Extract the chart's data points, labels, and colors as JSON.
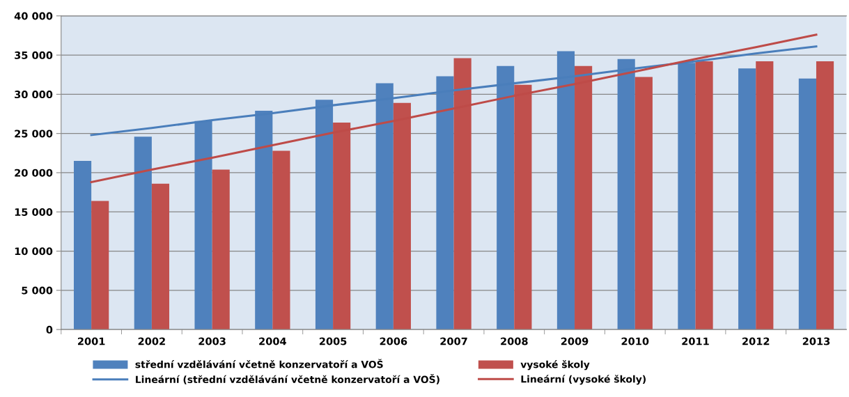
{
  "chart_data": {
    "type": "bar",
    "categories": [
      "2001",
      "2002",
      "2003",
      "2004",
      "2005",
      "2006",
      "2007",
      "2008",
      "2009",
      "2010",
      "2011",
      "2012",
      "2013"
    ],
    "series": [
      {
        "name": "střední vzdělávání včetně konzervatoří a VOŠ",
        "color": "#4f81bd",
        "values": [
          21500,
          24600,
          26600,
          27900,
          29300,
          31400,
          32300,
          33600,
          35500,
          34500,
          34000,
          33300,
          32000
        ]
      },
      {
        "name": "vysoké školy",
        "color": "#c0504d",
        "values": [
          16400,
          18600,
          20400,
          22800,
          26400,
          28900,
          34600,
          31200,
          33600,
          32200,
          34200,
          34200,
          34200
        ]
      },
      {
        "name": "Lineární (střední vzdělávání včetně konzervatoří a VOŠ)",
        "type": "line",
        "color": "#4a7ebb",
        "values": [
          24800,
          25700,
          26700,
          27600,
          28600,
          29500,
          30500,
          31400,
          32300,
          33300,
          34200,
          35200,
          36100
        ]
      },
      {
        "name": "Lineární (vysoké školy)",
        "type": "line",
        "color": "#be4b48",
        "values": [
          18800,
          20400,
          21900,
          23500,
          25100,
          26600,
          28200,
          29800,
          31300,
          32900,
          34500,
          36000,
          37600
        ]
      }
    ],
    "ylim": [
      0,
      40000
    ],
    "yticks": [
      {
        "value": 0,
        "label": "0"
      },
      {
        "value": 5000,
        "label": "5 000"
      },
      {
        "value": 10000,
        "label": "10 000"
      },
      {
        "value": 15000,
        "label": "15 000"
      },
      {
        "value": 20000,
        "label": "20 000"
      },
      {
        "value": 25000,
        "label": "25 000"
      },
      {
        "value": 30000,
        "label": "30 000"
      },
      {
        "value": 35000,
        "label": "35 000"
      },
      {
        "value": 40000,
        "label": "40 000"
      }
    ],
    "grid": "y",
    "legend": "bottom"
  }
}
